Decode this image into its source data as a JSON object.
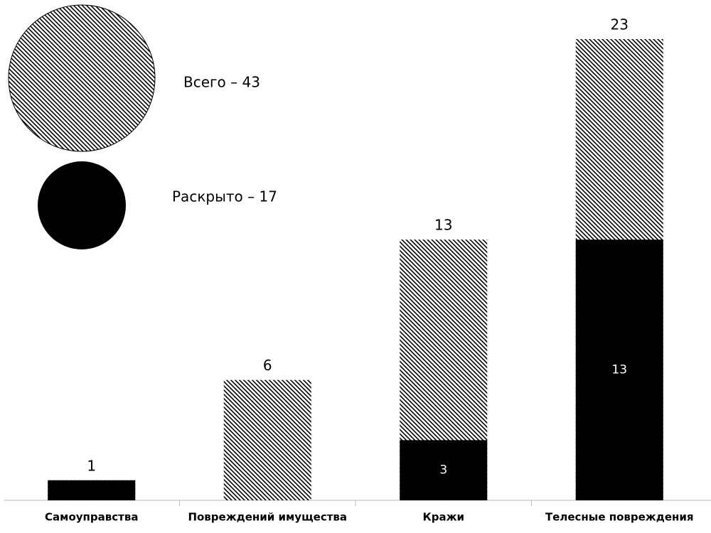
{
  "chart_data": {
    "type": "overlap-bar",
    "categories": [
      "Самоуправства",
      "Повреждений имущества",
      "Кражи",
      "Телесные повреждения"
    ],
    "series": [
      {
        "name": "Всего – 43",
        "color": "#000000",
        "hatch": true,
        "values": [
          1,
          6,
          13,
          23
        ],
        "value_labels": [
          "1",
          "6",
          "13",
          "23"
        ]
      },
      {
        "name": "Раскрыто – 17",
        "color": "#000000",
        "hatch": false,
        "values": [
          1,
          0,
          3,
          13
        ],
        "value_labels": [
          null,
          null,
          "3",
          "13"
        ]
      }
    ],
    "ylim": [
      0,
      23
    ]
  }
}
